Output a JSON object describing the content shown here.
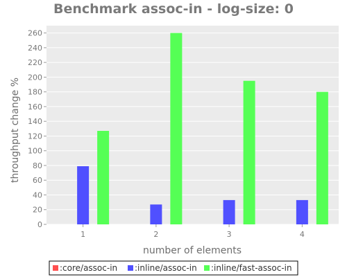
{
  "chart_data": {
    "type": "bar",
    "title": "Benchmark assoc-in - log-size: 0",
    "xlabel": "number of elements",
    "ylabel": "throughput change %",
    "categories": [
      "1",
      "2",
      "3",
      "4"
    ],
    "ylim": [
      0,
      270
    ],
    "yticks": [
      0,
      20,
      40,
      60,
      80,
      100,
      120,
      140,
      160,
      180,
      200,
      220,
      240,
      260
    ],
    "grid": true,
    "legend_position": "bottom",
    "series": [
      {
        "name": ":core/assoc-in",
        "color": "#ff4f4f",
        "values": [
          0,
          0,
          0,
          0
        ]
      },
      {
        "name": ":inline/assoc-in",
        "color": "#5050ff",
        "values": [
          79,
          27,
          33,
          33
        ]
      },
      {
        "name": ":inline/fast-assoc-in",
        "color": "#55ff55",
        "values": [
          127,
          260,
          195,
          180
        ]
      }
    ]
  }
}
